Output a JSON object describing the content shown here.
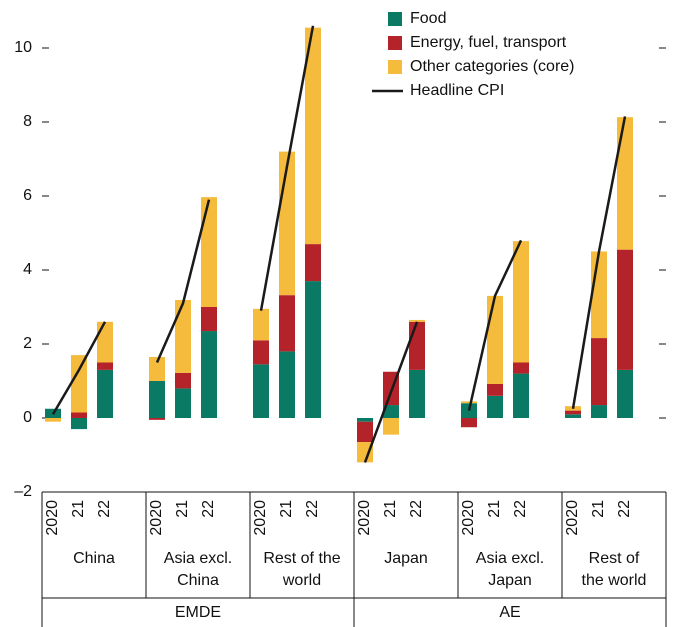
{
  "chart_data": {
    "type": "bar",
    "stacked": true,
    "categories": [
      "2020",
      "21",
      "22",
      "2020",
      "21",
      "22",
      "2020",
      "21",
      "22",
      "2020",
      "21",
      "22",
      "2020",
      "21",
      "22",
      "2020",
      "21",
      "22"
    ],
    "subgroups": [
      "China",
      "Asia excl.\nChina",
      "Rest of the\nworld",
      "Japan",
      "Asia excl.\nJapan",
      "Rest of\nthe world"
    ],
    "supergroups": [
      "EMDE",
      "AE"
    ],
    "series": [
      {
        "name": "Food",
        "color": "#0b7a64",
        "values": [
          0.25,
          -0.3,
          1.3,
          1.0,
          0.8,
          2.35,
          1.45,
          1.8,
          3.7,
          -0.1,
          0.35,
          1.3,
          0.4,
          0.6,
          1.2,
          0.1,
          0.35,
          1.3
        ]
      },
      {
        "name": "Energy, fuel, transport",
        "color": "#b5232a",
        "values": [
          0,
          0.15,
          0.2,
          -0.05,
          0.42,
          0.65,
          0.65,
          1.52,
          1.0,
          -0.55,
          0.9,
          1.3,
          -0.25,
          0.32,
          0.3,
          0.1,
          1.81,
          3.25
        ]
      },
      {
        "name": "Other categories (core)",
        "color": "#f5bb3d",
        "values": [
          -0.1,
          1.55,
          1.1,
          0.65,
          1.97,
          2.97,
          0.85,
          3.88,
          5.85,
          -0.55,
          -0.45,
          0.05,
          0.05,
          2.38,
          3.28,
          0.12,
          2.34,
          3.58
        ]
      },
      {
        "name": "Headline CPI",
        "type": "line",
        "color": "#1a1a1a",
        "values": [
          0.1,
          1.3,
          2.6,
          1.5,
          3.1,
          5.9,
          2.9,
          6.8,
          10.6,
          -1.2,
          0.7,
          2.6,
          0.2,
          3.3,
          4.8,
          0.25,
          4.5,
          8.15
        ]
      }
    ],
    "ylim": [
      -2,
      11
    ],
    "yticks": [
      {
        "value": -2,
        "label": "–2"
      },
      0,
      2,
      4,
      6,
      8,
      10
    ]
  }
}
